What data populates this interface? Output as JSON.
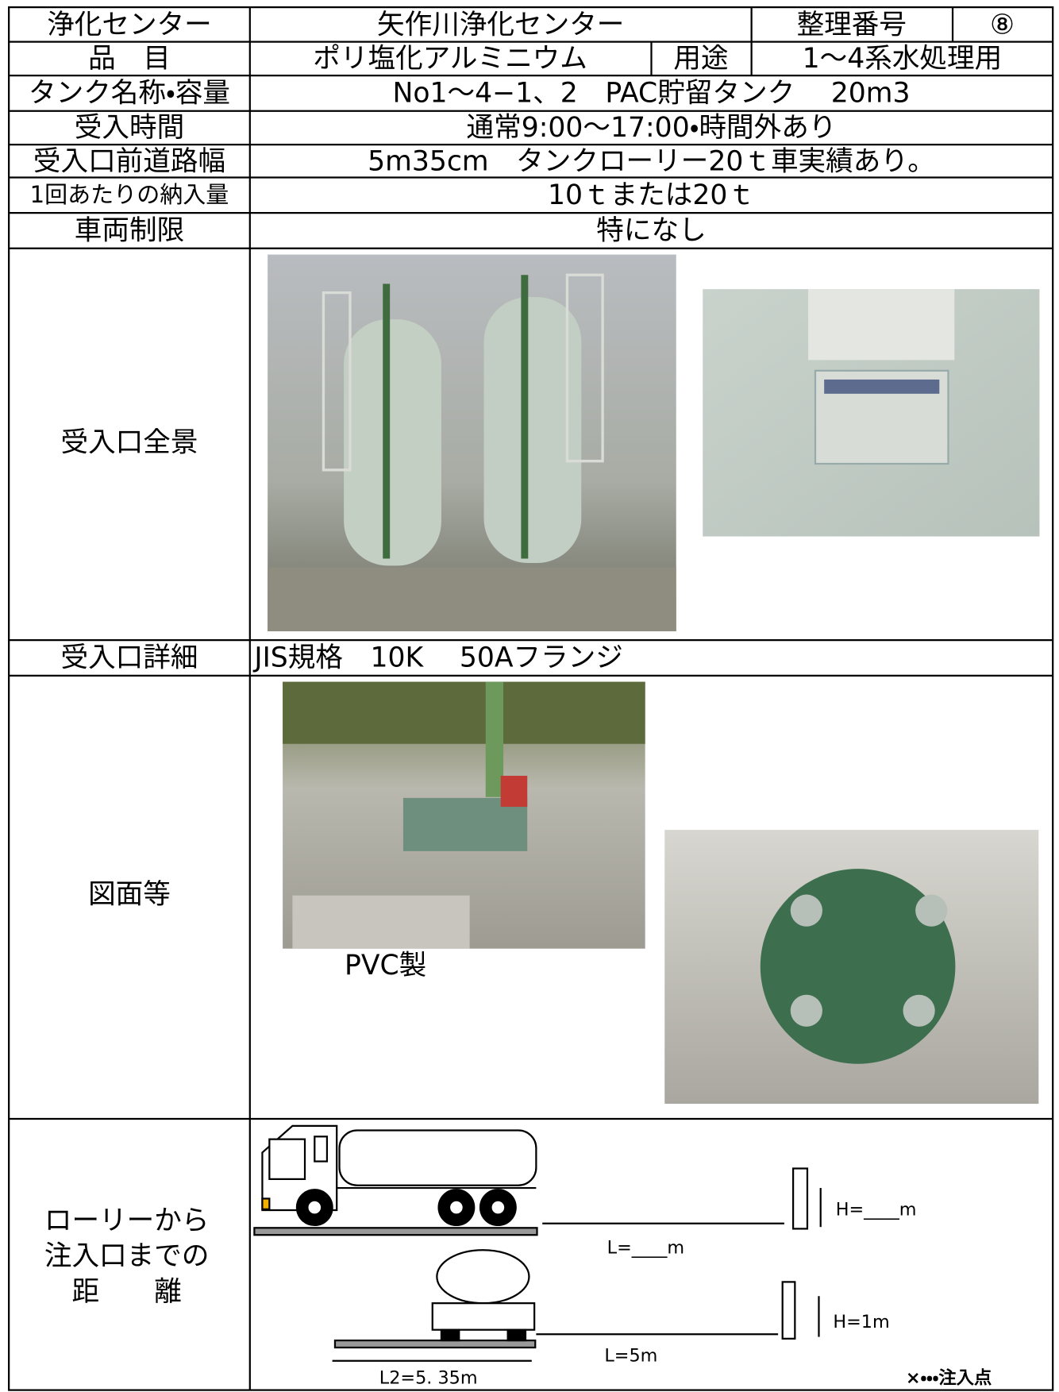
{
  "table": {
    "rows": [
      [
        "浄化センター",
        "矢作川浄化センター",
        "整理番号",
        "⑧"
      ],
      [
        "品　目",
        "ポリ塩化アルミニウム",
        "用途",
        "1〜4系水処理用"
      ],
      [
        "タンク名称・容量",
        "No1〜4−1、2　PAC貯留タンク　 20m3"
      ],
      [
        "受入時間",
        "通常9:00〜17:00・時間外あり"
      ],
      [
        "受入口前道路幅",
        "5m35cm　タンクローリー20ｔ車実績あり。"
      ],
      [
        "1回あたりの納入量",
        "10ｔまたは20ｔ"
      ],
      [
        "車両制限",
        "特になし"
      ],
      [
        "受入口全景"
      ],
      [
        "受入口詳細",
        "JIS規格　10K　 50Aフランジ"
      ],
      [
        "図面等",
        "PVC製"
      ],
      [
        "ローリーから",
        "注入口までの",
        "距　　離"
      ]
    ]
  },
  "diagram": {
    "h_blank": "H=____m",
    "l_blank": "L=____m",
    "h": "H=1m",
    "l": "L=5m",
    "l2": "L2=5. 35m",
    "legend": "×・・・注入点"
  }
}
